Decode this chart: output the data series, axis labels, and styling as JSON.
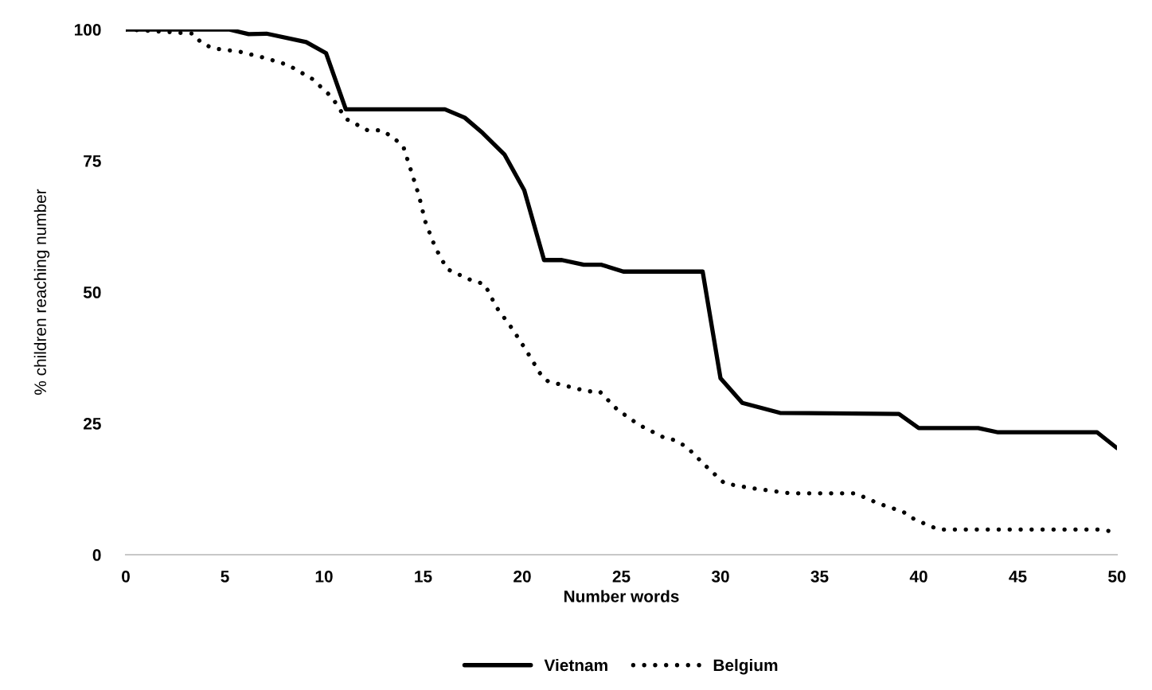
{
  "chart_data": {
    "type": "line",
    "xlabel": "Number words",
    "ylabel": "% children reaching number",
    "xlim": [
      0,
      50
    ],
    "xticks": [
      0,
      5,
      10,
      15,
      20,
      25,
      30,
      35,
      40,
      45,
      50
    ],
    "ylim": [
      0,
      100
    ],
    "yticks": [
      0,
      25,
      50,
      75,
      100
    ],
    "grid": false,
    "legend": "bottom",
    "marker": "none",
    "series": [
      {
        "name": "Vietnam",
        "color": "#000000",
        "line_style": "solid",
        "x": [
          0,
          5.2,
          6.2,
          7.1,
          9.1,
          10.1,
          11.1,
          16.1,
          17.1,
          18,
          19.1,
          20.1,
          21.1,
          22,
          23.1,
          24,
          25.1,
          29.1,
          30,
          31.1,
          33,
          39,
          40,
          43,
          44,
          49,
          50
        ],
        "values": [
          100,
          100,
          99.1,
          99.2,
          97.6,
          95.5,
          84.8,
          84.8,
          83.2,
          80.3,
          76.2,
          69.4,
          56.1,
          56.1,
          55.2,
          55.2,
          53.9,
          53.9,
          33.6,
          28.9,
          27.0,
          26.8,
          24.1,
          24.1,
          23.3,
          23.3,
          20.3
        ]
      },
      {
        "name": "Belgium",
        "color": "#000000",
        "line_style": "dotted",
        "x": [
          0,
          3.4,
          3.8,
          4.4,
          5.7,
          7,
          8.2,
          9.4,
          10.4,
          11.1,
          12.2,
          12.9,
          13.5,
          14,
          14.4,
          14.8,
          15.1,
          15.6,
          16.2,
          17.4,
          18.1,
          18.7,
          19.5,
          20.2,
          20.9,
          21.3,
          23.3,
          23.9,
          24.8,
          25.9,
          27.1,
          27.7,
          28.3,
          29.2,
          30.2,
          31.5,
          33.5,
          36.8,
          38,
          39.2,
          39.8,
          41,
          49.1,
          49.8
        ],
        "values": [
          100,
          99.2,
          97.5,
          96.4,
          95.8,
          94.6,
          93.2,
          90.6,
          87.1,
          83.0,
          80.8,
          80.8,
          79.4,
          77.7,
          73.0,
          68.2,
          63.5,
          58.6,
          54.4,
          52.3,
          51.5,
          47.1,
          43.0,
          38.9,
          34.5,
          33.0,
          31.1,
          31.1,
          27.6,
          24.7,
          22.4,
          21.8,
          20.5,
          17.1,
          13.6,
          12.7,
          11.7,
          11.7,
          9.7,
          8.2,
          6.7,
          4.8,
          4.8,
          4.4
        ]
      }
    ]
  }
}
